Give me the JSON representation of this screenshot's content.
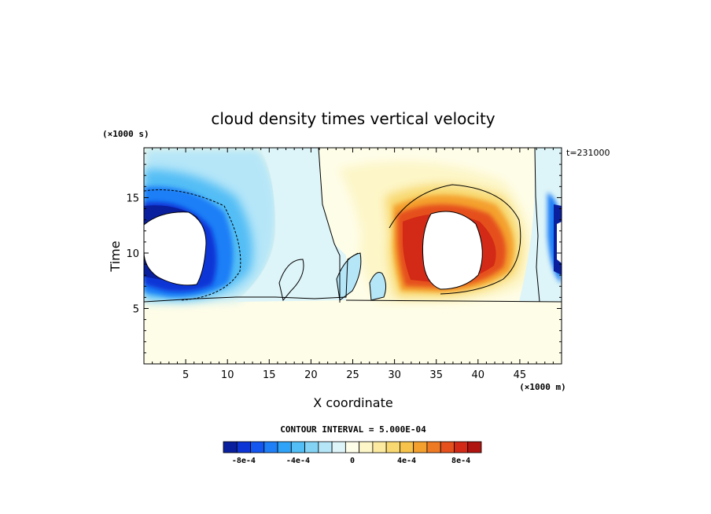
{
  "chart_data": {
    "type": "heatmap",
    "title": "cloud density times vertical velocity",
    "xlabel": "X coordinate",
    "ylabel": "Time",
    "x_unit": "(×1000 m)",
    "y_unit": "(×1000 s)",
    "time_stamp": "t=231000",
    "contour_interval": "CONTOUR INTERVAL = 5.000E-04",
    "xlim": [
      0,
      50
    ],
    "ylim": [
      0,
      19.5
    ],
    "x_ticks": [
      5,
      10,
      15,
      20,
      25,
      30,
      35,
      40,
      45
    ],
    "y_ticks": [
      5,
      10,
      15
    ],
    "colorbar": {
      "levels": [
        -0.0009,
        -0.0008,
        -0.0007,
        -0.0006,
        -0.0005,
        -0.0004,
        -0.0003,
        -0.0002,
        -0.0001,
        0,
        0.0001,
        0.0002,
        0.0003,
        0.0004,
        0.0005,
        0.0006,
        0.0007,
        0.0008,
        0.0009
      ],
      "colors": [
        "#0a1f9e",
        "#0d35d6",
        "#1456f0",
        "#1f7ff7",
        "#2fa3f7",
        "#53bdf5",
        "#84d3f5",
        "#b5e6f8",
        "#ddf4f8",
        "#fefde8",
        "#fdf6c8",
        "#fbeaa0",
        "#f8d870",
        "#f7c34a",
        "#f4a02e",
        "#ef7a24",
        "#e5501d",
        "#d22a16",
        "#b01410"
      ],
      "tick_labels": [
        "-8e-4",
        "-4e-4",
        "0",
        "4e-4",
        "8e-4"
      ]
    },
    "features": [
      {
        "sign": "negative",
        "x": 9,
        "y": 11.5,
        "peak": -0.0009
      },
      {
        "sign": "positive",
        "x": 37.5,
        "y": 11,
        "peak": 0.0009
      },
      {
        "sign": "negative",
        "x": 50,
        "y": 11,
        "peak": -0.0009
      }
    ]
  }
}
